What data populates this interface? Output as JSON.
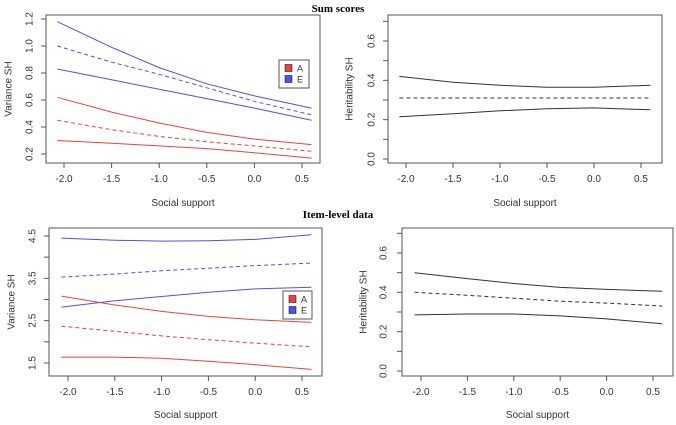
{
  "titles": [
    "Sum scores",
    "Item-level data"
  ],
  "colors": {
    "A": "#f04040",
    "E": "#5050f0",
    "h2": "#333333",
    "axis": "#555555"
  },
  "chart_data": [
    {
      "type": "line",
      "title": "Sum scores",
      "xlabel": "Social support",
      "ylabel": "Variance SH",
      "xlim": [
        -2.07,
        0.6
      ],
      "ylim": [
        0.2,
        1.2
      ],
      "x_ticks": [
        {
          "v": -2.0,
          "t": "-2.0"
        },
        {
          "v": -1.5,
          "t": "-1.5"
        },
        {
          "v": -1.0,
          "t": "-1.0"
        },
        {
          "v": -0.5,
          "t": "-0.5"
        },
        {
          "v": 0.0,
          "t": "0.0"
        },
        {
          "v": 0.5,
          "t": "0.5"
        }
      ],
      "y_ticks": [
        0.2,
        0.4,
        0.6,
        0.8,
        1.0,
        1.2
      ],
      "y_labels": [
        {
          "v": 0.2,
          "t": "0.2"
        },
        {
          "v": 0.4,
          "t": "0.4"
        },
        {
          "v": 0.6,
          "t": "0.6"
        },
        {
          "v": 0.8,
          "t": "0.8"
        },
        {
          "v": 1.0,
          "t": "1.0"
        },
        {
          "v": 1.2,
          "t": "1.2"
        }
      ],
      "legend": {
        "position": "right",
        "entries": [
          {
            "label": "A",
            "color_key": "A"
          },
          {
            "label": "E",
            "color_key": "E"
          }
        ]
      },
      "x": [
        -2.07,
        -1.5,
        -1.0,
        -0.5,
        0.0,
        0.6
      ],
      "series": [
        {
          "name": "E upper CI",
          "color_key": "E",
          "dashed": false,
          "values": [
            1.18,
            0.99,
            0.84,
            0.72,
            0.63,
            0.54
          ]
        },
        {
          "name": "E estimate",
          "color_key": "E",
          "dashed": true,
          "values": [
            1.0,
            0.88,
            0.79,
            0.69,
            0.59,
            0.49
          ]
        },
        {
          "name": "E lower CI",
          "color_key": "E",
          "dashed": false,
          "values": [
            0.83,
            0.75,
            0.68,
            0.61,
            0.54,
            0.45
          ]
        },
        {
          "name": "A upper CI",
          "color_key": "A",
          "dashed": false,
          "values": [
            0.62,
            0.51,
            0.43,
            0.36,
            0.31,
            0.27
          ]
        },
        {
          "name": "A estimate",
          "color_key": "A",
          "dashed": true,
          "values": [
            0.45,
            0.38,
            0.33,
            0.29,
            0.26,
            0.22
          ]
        },
        {
          "name": "A lower CI",
          "color_key": "A",
          "dashed": false,
          "values": [
            0.3,
            0.28,
            0.26,
            0.24,
            0.21,
            0.17
          ]
        }
      ]
    },
    {
      "type": "line",
      "title": "Sum scores",
      "xlabel": "Social support",
      "ylabel": "Heritability SH",
      "xlim": [
        -2.07,
        0.6
      ],
      "ylim": [
        0.0,
        0.7
      ],
      "x_ticks": [
        {
          "v": -2.0,
          "t": "-2.0"
        },
        {
          "v": -1.5,
          "t": "-1.5"
        },
        {
          "v": -1.0,
          "t": "-1.0"
        },
        {
          "v": -0.5,
          "t": "-0.5"
        },
        {
          "v": 0.0,
          "t": "0.0"
        },
        {
          "v": 0.5,
          "t": "0.5"
        }
      ],
      "y_ticks": [
        0.0,
        0.1,
        0.2,
        0.3,
        0.4,
        0.5,
        0.6,
        0.7
      ],
      "y_labels": [
        {
          "v": 0.0,
          "t": "0.0"
        },
        {
          "v": 0.2,
          "t": "0.2"
        },
        {
          "v": 0.4,
          "t": "0.4"
        },
        {
          "v": 0.6,
          "t": "0.6"
        }
      ],
      "x": [
        -2.07,
        -1.5,
        -1.0,
        -0.5,
        0.0,
        0.6
      ],
      "series": [
        {
          "name": "h2 upper CI",
          "color_key": "h2",
          "dashed": false,
          "values": [
            0.42,
            0.39,
            0.375,
            0.365,
            0.365,
            0.375
          ]
        },
        {
          "name": "h2 estimate",
          "color_key": "h2",
          "dashed": true,
          "values": [
            0.31,
            0.31,
            0.31,
            0.31,
            0.31,
            0.31
          ]
        },
        {
          "name": "h2 lower CI",
          "color_key": "h2",
          "dashed": false,
          "values": [
            0.215,
            0.23,
            0.245,
            0.255,
            0.26,
            0.25
          ]
        }
      ]
    },
    {
      "type": "line",
      "title": "Item-level data",
      "xlabel": "Social support",
      "ylabel": "Variance SH",
      "xlim": [
        -2.07,
        0.6
      ],
      "ylim": [
        1.3,
        4.55
      ],
      "x_ticks": [
        {
          "v": -2.0,
          "t": "-2.0"
        },
        {
          "v": -1.5,
          "t": "-1.5"
        },
        {
          "v": -1.0,
          "t": "-1.0"
        },
        {
          "v": -0.5,
          "t": "-0.5"
        },
        {
          "v": 0.0,
          "t": "0.0"
        },
        {
          "v": 0.5,
          "t": "0.5"
        }
      ],
      "y_ticks": [
        1.5,
        2.0,
        2.5,
        3.0,
        3.5,
        4.0,
        4.5
      ],
      "y_labels": [
        {
          "v": 1.5,
          "t": "1.5"
        },
        {
          "v": 2.5,
          "t": "2.5"
        },
        {
          "v": 3.5,
          "t": "3.5"
        },
        {
          "v": 4.5,
          "t": "4.5"
        }
      ],
      "legend": {
        "position": "right",
        "entries": [
          {
            "label": "A",
            "color_key": "A"
          },
          {
            "label": "E",
            "color_key": "E"
          }
        ]
      },
      "x": [
        -2.07,
        -1.5,
        -1.0,
        -0.5,
        0.0,
        0.6
      ],
      "series": [
        {
          "name": "E upper CI",
          "color_key": "E",
          "dashed": false,
          "values": [
            4.45,
            4.4,
            4.38,
            4.39,
            4.42,
            4.53
          ]
        },
        {
          "name": "E estimate",
          "color_key": "E",
          "dashed": true,
          "values": [
            3.53,
            3.6,
            3.68,
            3.74,
            3.8,
            3.86
          ]
        },
        {
          "name": "E lower CI",
          "color_key": "E",
          "dashed": false,
          "values": [
            2.82,
            2.97,
            3.07,
            3.17,
            3.25,
            3.29
          ]
        },
        {
          "name": "A upper CI",
          "color_key": "A",
          "dashed": false,
          "values": [
            3.08,
            2.87,
            2.72,
            2.6,
            2.52,
            2.46
          ]
        },
        {
          "name": "A estimate",
          "color_key": "A",
          "dashed": true,
          "values": [
            2.37,
            2.25,
            2.14,
            2.05,
            1.97,
            1.88
          ]
        },
        {
          "name": "A lower CI",
          "color_key": "A",
          "dashed": false,
          "values": [
            1.64,
            1.64,
            1.61,
            1.54,
            1.46,
            1.35
          ]
        }
      ]
    },
    {
      "type": "line",
      "title": "Item-level data",
      "xlabel": "Social support",
      "ylabel": "Heritability SH",
      "xlim": [
        -2.07,
        0.6
      ],
      "ylim": [
        0.0,
        0.7
      ],
      "x_ticks": [
        {
          "v": -2.0,
          "t": "-2.0"
        },
        {
          "v": -1.5,
          "t": "-1.5"
        },
        {
          "v": -1.0,
          "t": "-1.0"
        },
        {
          "v": -0.5,
          "t": "-0.5"
        },
        {
          "v": 0.0,
          "t": "0.0"
        },
        {
          "v": 0.5,
          "t": "0.5"
        }
      ],
      "y_ticks": [
        0.0,
        0.1,
        0.2,
        0.3,
        0.4,
        0.5,
        0.6,
        0.7
      ],
      "y_labels": [
        {
          "v": 0.0,
          "t": "0.0"
        },
        {
          "v": 0.2,
          "t": "0.2"
        },
        {
          "v": 0.4,
          "t": "0.4"
        },
        {
          "v": 0.6,
          "t": "0.6"
        }
      ],
      "x": [
        -2.07,
        -1.5,
        -1.0,
        -0.5,
        0.0,
        0.6
      ],
      "series": [
        {
          "name": "h2 upper CI",
          "color_key": "h2",
          "dashed": false,
          "values": [
            0.5,
            0.47,
            0.445,
            0.425,
            0.415,
            0.405
          ]
        },
        {
          "name": "h2 estimate",
          "color_key": "h2",
          "dashed": true,
          "values": [
            0.4,
            0.385,
            0.37,
            0.355,
            0.345,
            0.33
          ]
        },
        {
          "name": "h2 lower CI",
          "color_key": "h2",
          "dashed": false,
          "values": [
            0.285,
            0.29,
            0.29,
            0.28,
            0.265,
            0.24
          ]
        }
      ]
    }
  ]
}
